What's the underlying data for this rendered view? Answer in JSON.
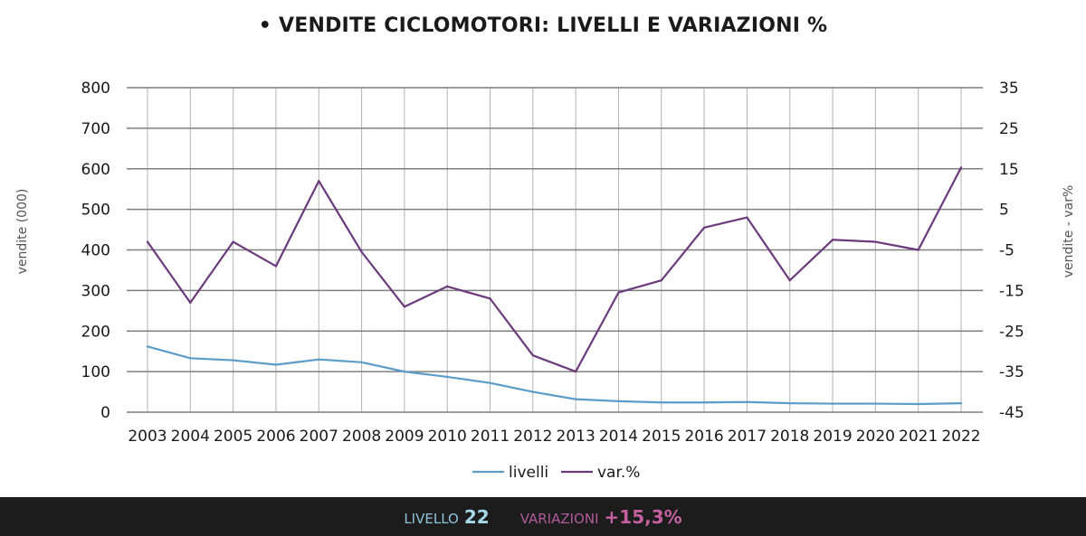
{
  "title": {
    "bullet": "•",
    "bold_part": "VENDITE CICLOMOTORI:",
    "rest": "LIVELLI E VARIAZIONI %"
  },
  "footer": {
    "livello_label": "LIVELLO",
    "livello_value": "22",
    "variazioni_label": "VARIAZIONI",
    "variazioni_value": "+15,3%"
  },
  "colors": {
    "livelli": "#5b9cc9",
    "var": "#6b3a7d",
    "grid": "#7f7f7f",
    "footer_bg": "#1c1c1c"
  },
  "chart_data": {
    "type": "line",
    "categories": [
      "2003",
      "2004",
      "2005",
      "2006",
      "2007",
      "2008",
      "2009",
      "2010",
      "2011",
      "2012",
      "2013",
      "2014",
      "2015",
      "2016",
      "2017",
      "2018",
      "2019",
      "2020",
      "2021",
      "2022"
    ],
    "y_left": {
      "label": "vendite  (000)",
      "ylim": [
        0,
        800
      ],
      "ticks": [
        "0",
        "100",
        "200",
        "300",
        "400",
        "500",
        "600",
        "700",
        "800"
      ]
    },
    "y_right": {
      "label": "vendite - var%",
      "ylim": [
        -45,
        35
      ],
      "ticks": [
        "-45",
        "-35",
        "-25",
        "-15",
        "-5",
        "5",
        "15",
        "25",
        "35"
      ]
    },
    "series": [
      {
        "name": "livelli",
        "axis": "left",
        "values": [
          162,
          133,
          128,
          117,
          130,
          123,
          100,
          87,
          72,
          50,
          32,
          27,
          24,
          24,
          25,
          22,
          21,
          21,
          20,
          22
        ]
      },
      {
        "name": "var.%",
        "axis": "right",
        "values": [
          -3,
          -18,
          -3,
          -9,
          12,
          -5.5,
          -19,
          -14,
          -17,
          -31,
          -35,
          -15.5,
          -12.5,
          0.5,
          3,
          -12.5,
          -2.5,
          -3,
          -5,
          15.3
        ]
      }
    ],
    "grid": true,
    "legend_position": "bottom"
  }
}
